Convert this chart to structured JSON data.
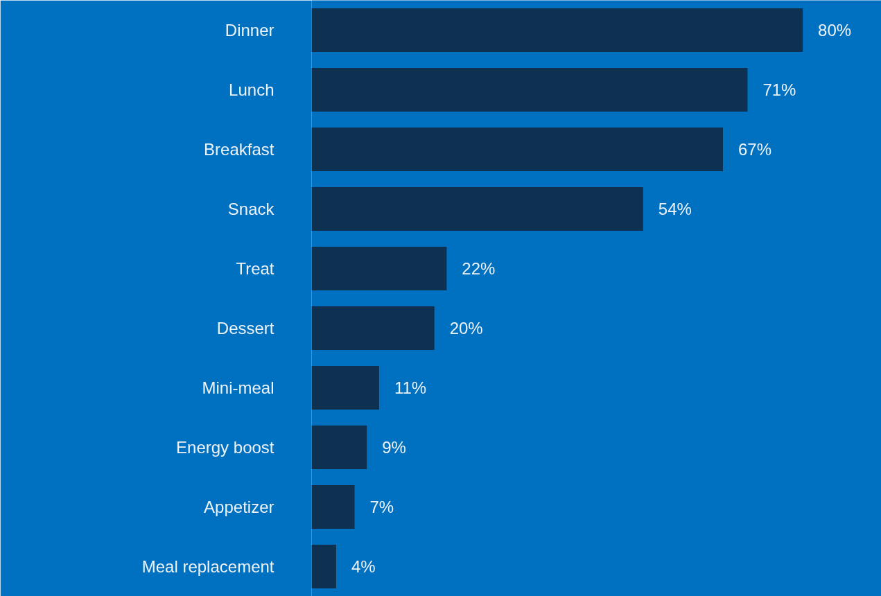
{
  "chart_data": {
    "type": "bar",
    "orientation": "horizontal",
    "categories": [
      "Dinner",
      "Lunch",
      "Breakfast",
      "Snack",
      "Treat",
      "Dessert",
      "Mini-meal",
      "Energy boost",
      "Appetizer",
      "Meal replacement"
    ],
    "values": [
      80,
      71,
      67,
      54,
      22,
      20,
      11,
      9,
      7,
      4
    ],
    "value_labels": [
      "80%",
      "71%",
      "67%",
      "54%",
      "22%",
      "20%",
      "11%",
      "9%",
      "7%",
      "4%"
    ],
    "color": "#0e3152",
    "grid": false
  }
}
